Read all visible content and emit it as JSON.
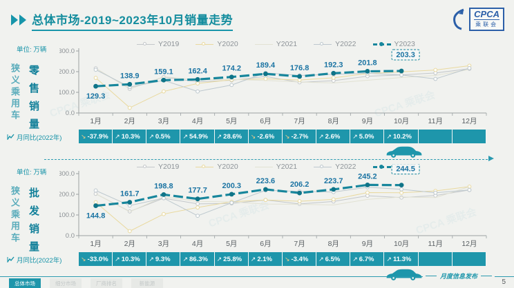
{
  "header": {
    "title": "总体市场-2019~2023年10月销量走势",
    "logo": {
      "name": "CPCA",
      "subtitle": "乘联会"
    }
  },
  "watermark": "CPCA 乘联会",
  "months": [
    "1月",
    "2月",
    "3月",
    "4月",
    "5月",
    "6月",
    "7月",
    "8月",
    "9月",
    "10月",
    "11月",
    "12月"
  ],
  "sections": [
    {
      "unit": "单位: 万辆",
      "side_label": "狭义乘用车",
      "metric_label": "零售销量",
      "yoy_label": "月同比(2022年)",
      "yoy_values": [
        "-37.9%",
        "10.3%",
        "0.5%",
        "54.9%",
        "28.6%",
        "-2.6%",
        "-2.7%",
        "2.6%",
        "5.0%",
        "10.2%",
        "",
        ""
      ]
    },
    {
      "unit": "单位: 万辆",
      "side_label": "狭义乘用车",
      "metric_label": "批发销量",
      "yoy_label": "月同比(2022年)",
      "yoy_values": [
        "-33.0%",
        "10.3%",
        "9.3%",
        "86.3%",
        "25.8%",
        "2.1%",
        "-3.4%",
        "6.5%",
        "6.7%",
        "11.3%",
        "",
        ""
      ]
    }
  ],
  "chart_data": [
    {
      "type": "line",
      "title": "狭义乘用车零售销量(万辆)",
      "x": [
        "1月",
        "2月",
        "3月",
        "4月",
        "5月",
        "6月",
        "7月",
        "8月",
        "9月",
        "10月",
        "11月",
        "12月"
      ],
      "ylabel": "万辆",
      "ylim": [
        0,
        300
      ],
      "yticks": [
        "0.0",
        "100.0",
        "200.0",
        "300.0"
      ],
      "grid": false,
      "legend_position": "top",
      "series": [
        {
          "name": "Y2019",
          "color": "#c3c7ca",
          "width": 1,
          "marker": "hollow",
          "values": [
            216.1,
            117.0,
            174.0,
            150.8,
            158.2,
            176.6,
            148.5,
            156.4,
            178.1,
            184.0,
            193.7,
            214.1
          ]
        },
        {
          "name": "Y2020",
          "color": "#e9d99e",
          "width": 1,
          "marker": "hollow",
          "values": [
            169.9,
            25.2,
            104.5,
            142.9,
            160.9,
            165.4,
            159.8,
            170.3,
            191.0,
            199.2,
            208.1,
            228.8
          ]
        },
        {
          "name": "Y2021",
          "color": "#e2e2d3",
          "width": 1,
          "marker": "none",
          "values": [
            216.0,
            117.7,
            175.2,
            160.8,
            162.3,
            157.5,
            150.0,
            145.3,
            158.2,
            171.7,
            181.6,
            210.5
          ]
        },
        {
          "name": "Y2022",
          "color": "#bdc8ce",
          "width": 1,
          "marker": "hollow",
          "values": [
            209.2,
            125.6,
            157.9,
            104.2,
            135.4,
            194.3,
            181.8,
            187.1,
            192.2,
            184.0,
            164.9,
            216.9
          ]
        },
        {
          "name": "Y2023",
          "color": "#17869c",
          "width": 3.2,
          "marker": "filled",
          "dash": "14 5",
          "labels": true,
          "values": [
            129.3,
            138.9,
            159.1,
            162.4,
            174.2,
            189.4,
            176.8,
            192.3,
            201.8,
            203.3,
            null,
            null
          ]
        }
      ]
    },
    {
      "type": "line",
      "title": "狭义乘用车批发销量(万辆)",
      "x": [
        "1月",
        "2月",
        "3月",
        "4月",
        "5月",
        "6月",
        "7月",
        "8月",
        "9月",
        "10月",
        "11月",
        "12月"
      ],
      "ylabel": "万辆",
      "ylim": [
        0,
        300
      ],
      "yticks": [
        "0.0",
        "100.0",
        "200.0",
        "300.0"
      ],
      "grid": false,
      "legend_position": "top",
      "series": [
        {
          "name": "Y2019",
          "color": "#c3c7ca",
          "width": 1,
          "marker": "hollow",
          "values": [
            202.2,
            117.1,
            181.1,
            153.8,
            156.0,
            172.8,
            153.3,
            165.3,
            193.1,
            184.3,
            193.9,
            220.6
          ]
        },
        {
          "name": "Y2020",
          "color": "#e9d99e",
          "width": 1,
          "marker": "hollow",
          "values": [
            161.4,
            21.8,
            104.3,
            136.2,
            163.9,
            172.5,
            166.5,
            175.3,
            208.3,
            207.2,
            216.3,
            237.1
          ]
        },
        {
          "name": "Y2021",
          "color": "#e2e2d3",
          "width": 1,
          "marker": "none",
          "values": [
            202.3,
            115.5,
            188.0,
            166.0,
            163.0,
            153.1,
            151.8,
            148.2,
            175.3,
            187.1,
            184.1,
            236.5
          ]
        },
        {
          "name": "Y2022",
          "color": "#bdc8ce",
          "width": 1,
          "marker": "hollow",
          "values": [
            218.5,
            145.3,
            181.4,
            96.0,
            159.0,
            218.9,
            213.9,
            210.7,
            234.3,
            224.1,
            207.3,
            220.9
          ]
        },
        {
          "name": "Y2023",
          "color": "#17869c",
          "width": 3.2,
          "marker": "filled",
          "dash": "14 5",
          "labels": true,
          "values": [
            144.8,
            161.7,
            198.8,
            177.7,
            200.3,
            223.6,
            206.2,
            223.7,
            245.2,
            244.5,
            null,
            null
          ]
        }
      ]
    }
  ],
  "colors": {
    "accent_teal": "#1e96ab",
    "title_teal": "#148d9e",
    "y2023_line": "#17869c",
    "data_label": "#1b74a3",
    "negative_icon": "#f2cd88",
    "logo_blue": "#2b5fa8"
  },
  "footer": {
    "tabs": [
      {
        "label": "总体市场",
        "active": true
      },
      {
        "label": "细分市场",
        "active": false
      },
      {
        "label": "厂商排名",
        "active": false
      },
      {
        "label": "新能源",
        "active": false
      }
    ],
    "publication": "月度信息发布",
    "page_number": "5"
  }
}
